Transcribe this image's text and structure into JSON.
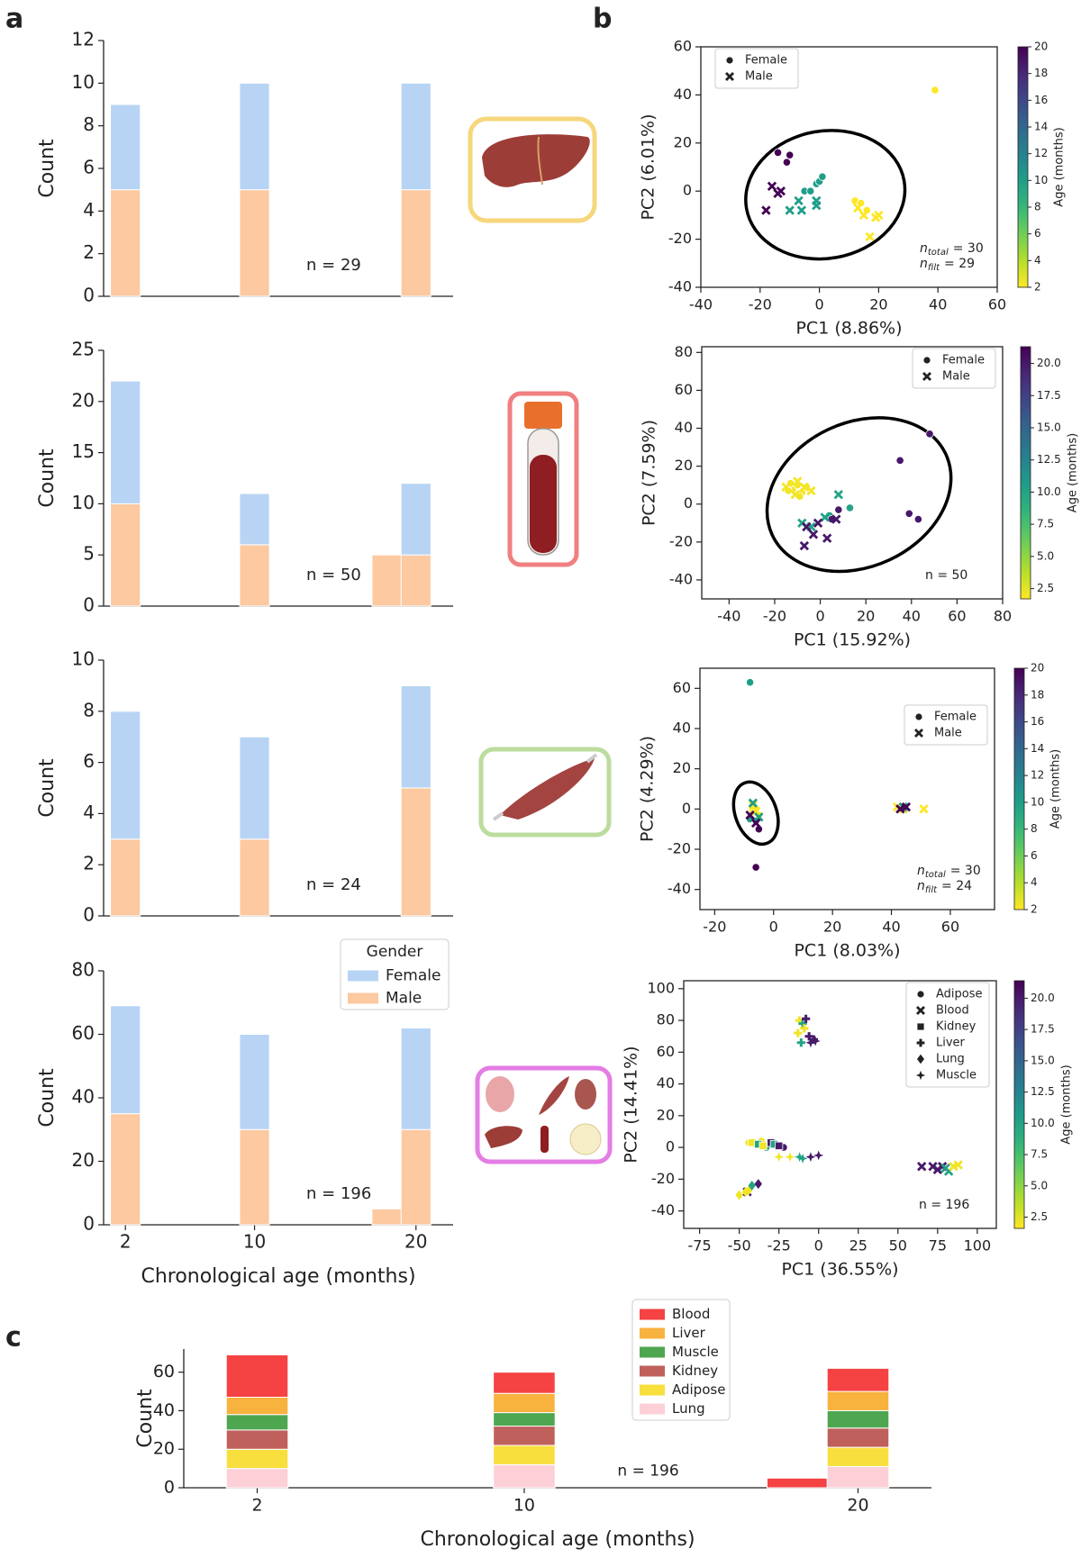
{
  "panels": [
    "a",
    "b",
    "c"
  ],
  "chart_data": [
    {
      "type": "bar",
      "ylabel": "Count",
      "note": "n = 29",
      "xlim": [
        0.65,
        22.3
      ],
      "ylim": [
        0,
        12
      ],
      "yticks": [
        0,
        2,
        4,
        6,
        8,
        10,
        12
      ],
      "x": [
        2,
        10,
        20
      ],
      "series": [
        {
          "name": "Female",
          "color": "#b8d4f4",
          "values": [
            4,
            5,
            5
          ]
        },
        {
          "name": "Male",
          "color": "#fcc9a1",
          "values": [
            5,
            5,
            5
          ]
        }
      ]
    },
    {
      "type": "bar",
      "ylabel": "Count",
      "note": "n = 50",
      "xlim": [
        0.65,
        22.3
      ],
      "ylim": [
        0,
        25
      ],
      "yticks": [
        0,
        5,
        10,
        15,
        20,
        25
      ],
      "x": [
        2,
        10,
        18.2,
        20
      ],
      "series": [
        {
          "name": "Female",
          "color": "#b8d4f4",
          "values": [
            12,
            5,
            0,
            7
          ]
        },
        {
          "name": "Male",
          "color": "#fcc9a1",
          "values": [
            10,
            6,
            5,
            5
          ]
        }
      ]
    },
    {
      "type": "bar",
      "ylabel": "Count",
      "note": "n = 24",
      "xlim": [
        0.65,
        22.3
      ],
      "ylim": [
        0,
        10
      ],
      "yticks": [
        0,
        2,
        4,
        6,
        8,
        10
      ],
      "x": [
        2,
        10,
        20
      ],
      "series": [
        {
          "name": "Female",
          "color": "#b8d4f4",
          "values": [
            5,
            4,
            4
          ]
        },
        {
          "name": "Male",
          "color": "#fcc9a1",
          "values": [
            3,
            3,
            5
          ]
        }
      ]
    },
    {
      "type": "bar",
      "ylabel": "Count",
      "xlabel": "Chronological age (months)",
      "note": "n = 196",
      "xlim": [
        0.65,
        22.3
      ],
      "ylim": [
        0,
        80
      ],
      "yticks": [
        0,
        20,
        40,
        60,
        80
      ],
      "xticks": [
        2,
        10,
        20
      ],
      "legend": "upper right",
      "legend_title": "Gender",
      "x": [
        2,
        10,
        18.2,
        20
      ],
      "series": [
        {
          "name": "Female",
          "color": "#b8d4f4",
          "values": [
            34,
            30,
            0,
            32
          ]
        },
        {
          "name": "Male",
          "color": "#fcc9a1",
          "values": [
            35,
            30,
            5,
            30
          ]
        }
      ]
    },
    {
      "type": "scatter",
      "xlabel": "PC1 (8.86%)",
      "ylabel": "PC2 (6.01%)",
      "xlim": [
        -40,
        60
      ],
      "ylim": [
        -40,
        60
      ],
      "xticks": [
        -40,
        -20,
        0,
        20,
        40,
        60
      ],
      "yticks": [
        -40,
        -20,
        0,
        20,
        40,
        60
      ],
      "legend": "upper left",
      "colorbar": {
        "label": "Age (months)",
        "clim": [
          2,
          20
        ],
        "ticks": [
          2,
          4,
          6,
          8,
          10,
          12,
          14,
          16,
          18,
          20
        ]
      },
      "ellipse": {
        "cx": 2,
        "cy": -1.5,
        "rx": 27,
        "ry": 26.5,
        "angle": -10
      },
      "notes": [
        {
          "base": "n",
          "sub": "total",
          "text": "= 30"
        },
        {
          "base": "n",
          "sub": "filt",
          "text": "= 29"
        }
      ],
      "series": [
        {
          "name": "Female",
          "marker": "circle",
          "x": [
            -14,
            -10,
            -11,
            -5,
            -3,
            -1,
            0,
            1,
            12,
            14,
            16,
            39
          ],
          "y": [
            16,
            15,
            12,
            0,
            0,
            3,
            4,
            6,
            -4,
            -5,
            -8,
            42
          ],
          "c": [
            20,
            20,
            20,
            10,
            10,
            10,
            10,
            10,
            2,
            2,
            2,
            2
          ]
        },
        {
          "name": "Male",
          "marker": "x",
          "x": [
            -16,
            -14,
            -18,
            -13,
            -10,
            -6,
            -7,
            -1,
            -1,
            13,
            15,
            19,
            20,
            17
          ],
          "y": [
            2,
            -1,
            -8,
            0,
            -8,
            -8,
            -4,
            -6,
            -4,
            -7,
            -10,
            -11,
            -10,
            -19
          ],
          "c": [
            20,
            20,
            20,
            20,
            10,
            10,
            10,
            10,
            10,
            2,
            2,
            2,
            2,
            2
          ]
        }
      ]
    },
    {
      "type": "scatter",
      "xlabel": "PC1 (15.92%)",
      "ylabel": "PC2 (7.59%)",
      "xlim": [
        -52,
        80
      ],
      "ylim": [
        -50,
        83
      ],
      "xticks": [
        -40,
        -20,
        0,
        20,
        40,
        60,
        80
      ],
      "yticks": [
        -40,
        -20,
        0,
        20,
        40,
        60,
        80
      ],
      "legend": "upper right",
      "colorbar": {
        "label": "Age (months)",
        "clim": [
          1.7,
          21.3
        ],
        "ticks": [
          2.5,
          {
            "value": 5,
            "label": "5.0"
          },
          7.5,
          {
            "value": 10,
            "label": "10.0"
          },
          12.5,
          {
            "value": 15,
            "label": "15.0"
          },
          17.5,
          {
            "value": 20,
            "label": "20.0"
          }
        ]
      },
      "ellipse": {
        "cx": 17,
        "cy": 5,
        "rx": 42,
        "ry": 38,
        "angle": -25
      },
      "notes": [
        {
          "text": "n = 50"
        }
      ],
      "series": [
        {
          "name": "Female",
          "marker": "circle",
          "x": [
            -12,
            -10,
            -8,
            -14,
            -6,
            -9,
            -13,
            13,
            4,
            35,
            48,
            39,
            43,
            8,
            5
          ],
          "y": [
            8,
            10,
            6,
            7,
            9,
            4,
            11,
            -2,
            -6,
            23,
            37,
            -5,
            -8,
            -3,
            -8
          ],
          "c": [
            2,
            2,
            2,
            2,
            2,
            2,
            2,
            10,
            10,
            20,
            20,
            20,
            20,
            20,
            20
          ]
        },
        {
          "name": "Male",
          "marker": "x",
          "x": [
            -10,
            -7,
            -11,
            -4,
            -15,
            8,
            -8,
            2,
            -4,
            -6,
            -3,
            -7,
            3,
            -1,
            7
          ],
          "y": [
            12,
            9,
            5,
            7,
            9,
            5,
            -10,
            -7,
            -12,
            -12,
            -16,
            -22,
            -18,
            -10,
            -8
          ],
          "c": [
            2,
            2,
            2,
            2,
            2,
            10,
            10,
            10,
            10,
            20,
            20,
            20,
            20,
            20,
            20
          ]
        }
      ]
    },
    {
      "type": "scatter",
      "xlabel": "PC1 (8.03%)",
      "ylabel": "PC2 (4.29%)",
      "xlim": [
        -25,
        75
      ],
      "ylim": [
        -50,
        70
      ],
      "xticks": [
        -20,
        0,
        20,
        40,
        60
      ],
      "yticks": [
        -40,
        -20,
        0,
        20,
        40,
        60
      ],
      "legend": "center right",
      "colorbar": {
        "label": "Age (months)",
        "clim": [
          2,
          20
        ],
        "ticks": [
          2,
          4,
          6,
          8,
          10,
          12,
          14,
          16,
          18,
          20
        ]
      },
      "ellipse": {
        "cx": -6,
        "cy": -2,
        "rx": 7,
        "ry": 16,
        "angle": -20
      },
      "notes": [
        {
          "base": "n",
          "sub": "total",
          "text": "= 30"
        },
        {
          "base": "n",
          "sub": "filt",
          "text": "= 24"
        }
      ],
      "series": [
        {
          "name": "Female",
          "marker": "circle",
          "x": [
            -8,
            -7,
            -6,
            -5,
            -8,
            -6,
            -6,
            -5
          ],
          "y": [
            63,
            -1,
            0,
            -3,
            -5,
            -6,
            -29,
            -10
          ],
          "c": [
            10,
            2,
            2,
            2,
            10,
            10,
            20,
            20
          ]
        },
        {
          "name": "Male",
          "marker": "x",
          "x": [
            -7,
            -6,
            44,
            51,
            42,
            -7,
            -5,
            44,
            -8,
            -6,
            43,
            45
          ],
          "y": [
            2,
            -1,
            0,
            0,
            1,
            3,
            -4,
            1,
            -3,
            -7,
            0,
            1
          ],
          "c": [
            2,
            2,
            2,
            2,
            2,
            10,
            10,
            10,
            20,
            20,
            20,
            20
          ]
        }
      ]
    },
    {
      "type": "scatter",
      "xlabel": "PC1 (36.55%)",
      "ylabel": "PC2 (14.41%)",
      "xlim": [
        -85,
        112
      ],
      "ylim": [
        -51,
        105
      ],
      "xticks": [
        -75,
        -50,
        -25,
        0,
        25,
        50,
        75,
        100
      ],
      "yticks": [
        -40,
        -20,
        0,
        20,
        40,
        60,
        80,
        100
      ],
      "legend": "upper right",
      "colorbar": {
        "label": "Age (months)",
        "clim": [
          1.6,
          21.4
        ],
        "ticks": [
          2.5,
          {
            "value": 5,
            "label": "5.0"
          },
          7.5,
          {
            "value": 10,
            "label": "10.0"
          },
          12.5,
          {
            "value": 15,
            "label": "15.0"
          },
          17.5,
          {
            "value": 20,
            "label": "20.0"
          }
        ]
      },
      "notes": [
        {
          "text": "n = 196"
        }
      ],
      "series": [
        {
          "name": "Adipose",
          "marker": "circle",
          "x": [
            -40,
            -44,
            -36,
            -33,
            -22
          ],
          "y": [
            2,
            3,
            4,
            0,
            0
          ],
          "c": [
            2,
            2,
            2,
            10,
            20
          ]
        },
        {
          "name": "Blood",
          "marker": "x",
          "x": [
            65,
            72,
            75,
            78,
            80,
            82,
            85,
            88,
            -45
          ],
          "y": [
            -12,
            -12,
            -14,
            -12,
            -13,
            -15,
            -12,
            -11,
            -28
          ],
          "c": [
            20,
            20,
            20,
            20,
            10,
            10,
            2,
            2,
            20
          ]
        },
        {
          "name": "Kidney",
          "marker": "square",
          "x": [
            -42,
            -38,
            -35,
            -30,
            -28,
            -25
          ],
          "y": [
            3,
            2,
            1,
            3,
            2,
            1
          ],
          "c": [
            2,
            10,
            2,
            20,
            10,
            20
          ]
        },
        {
          "name": "Liver",
          "marker": "plus",
          "x": [
            -13,
            -12,
            -10,
            -9,
            -8,
            -6,
            -3,
            -11
          ],
          "y": [
            72,
            80,
            78,
            75,
            81,
            70,
            68,
            66
          ],
          "c": [
            2,
            2,
            10,
            2,
            20,
            20,
            20,
            10
          ]
        },
        {
          "name": "Lung",
          "marker": "diamond",
          "x": [
            -50,
            -46,
            -44,
            -42,
            -38
          ],
          "y": [
            -30,
            -28,
            -27,
            -24,
            -23
          ],
          "c": [
            2,
            2,
            2,
            10,
            20
          ]
        },
        {
          "name": "Muscle",
          "marker": "star",
          "x": [
            -25,
            -18,
            -12,
            -10,
            -5,
            0,
            -5,
            -2
          ],
          "y": [
            -6,
            -6,
            -6,
            -7,
            -6,
            -5,
            66,
            67
          ],
          "c": [
            2,
            2,
            10,
            10,
            20,
            20,
            20,
            20
          ]
        }
      ]
    },
    {
      "type": "bar",
      "ylabel": "Count",
      "xlabel": "Chronological age (months)",
      "note": "n = 196",
      "xlim": [
        -0.2,
        22.2
      ],
      "ylim": [
        0,
        72
      ],
      "yticks": [
        0,
        20,
        40,
        60
      ],
      "xticks": [
        2,
        10,
        20
      ],
      "legend": "upper center",
      "x": [
        2,
        10,
        18.2,
        20
      ],
      "series": [
        {
          "name": "Blood",
          "color": "#f54242",
          "values": [
            22,
            11,
            5,
            12
          ]
        },
        {
          "name": "Liver",
          "color": "#f8b23e",
          "values": [
            9,
            10,
            0,
            10
          ]
        },
        {
          "name": "Muscle",
          "color": "#4fa650",
          "values": [
            8,
            7,
            0,
            9
          ]
        },
        {
          "name": "Kidney",
          "color": "#c0605c",
          "values": [
            10,
            10,
            0,
            10
          ]
        },
        {
          "name": "Adipose",
          "color": "#f8df3e",
          "values": [
            10,
            10,
            0,
            10
          ]
        },
        {
          "name": "Lung",
          "color": "#fdd0d8",
          "values": [
            10,
            12,
            0,
            11
          ]
        }
      ]
    }
  ]
}
